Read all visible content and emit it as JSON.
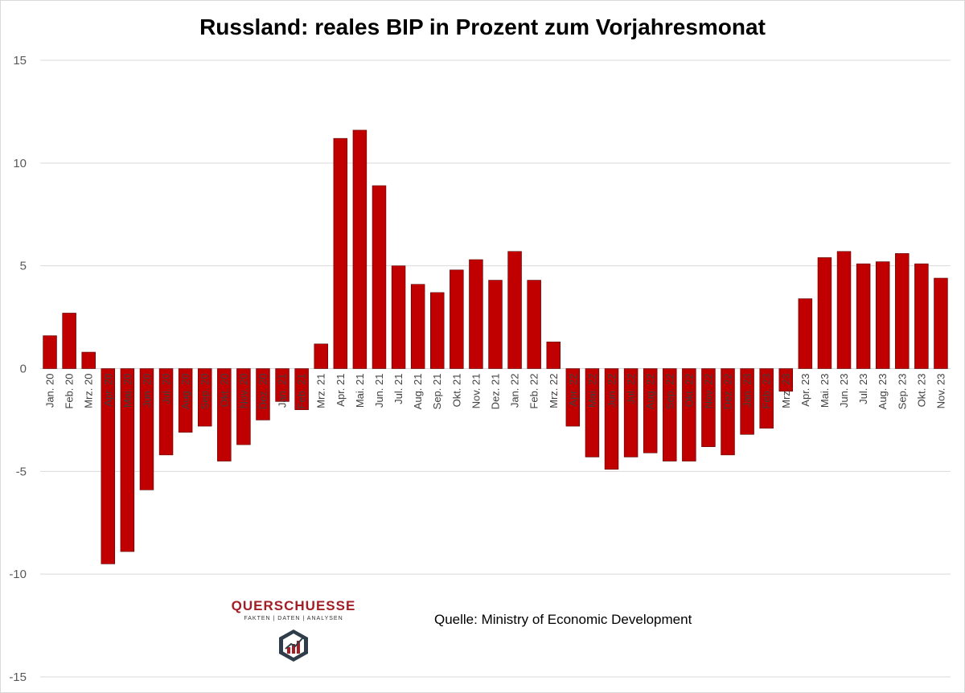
{
  "chart_data": {
    "type": "bar",
    "title": "Russland: reales BIP in Prozent zum Vorjahresmonat",
    "xlabel": "",
    "ylabel": "",
    "ylim": [
      -15,
      15
    ],
    "yticks": [
      15,
      10,
      5,
      0,
      -5,
      -10,
      -15
    ],
    "grid": true,
    "categories": [
      "Jan. 20",
      "Feb. 20",
      "Mrz. 20",
      "Apr. 20",
      "Mai. 20",
      "Jun. 20",
      "Jul. 20",
      "Aug. 20",
      "Sep. 20",
      "Okt. 20",
      "Nov. 20",
      "Dez. 20",
      "Jan. 21",
      "Feb. 21",
      "Mrz. 21",
      "Apr. 21",
      "Mai. 21",
      "Jun. 21",
      "Jul. 21",
      "Aug. 21",
      "Sep. 21",
      "Okt. 21",
      "Nov. 21",
      "Dez. 21",
      "Jan. 22",
      "Feb. 22",
      "Mrz. 22",
      "Apr. 22",
      "Mai. 22",
      "Jun. 22",
      "Jul. 22",
      "Aug. 22",
      "Sep. 22",
      "Okt. 22",
      "Nov. 22",
      "Dez. 22",
      "Jan. 23",
      "Feb. 23",
      "Mrz. 23",
      "Apr. 23",
      "Mai. 23",
      "Jun. 23",
      "Jul. 23",
      "Aug. 23",
      "Sep. 23",
      "Okt. 23",
      "Nov. 23"
    ],
    "values": [
      1.6,
      2.7,
      0.8,
      -9.5,
      -8.9,
      -5.9,
      -4.2,
      -3.1,
      -2.8,
      -4.5,
      -3.7,
      -2.5,
      -1.6,
      -2.0,
      1.2,
      11.2,
      11.6,
      8.9,
      5.0,
      4.1,
      3.7,
      4.8,
      5.3,
      4.3,
      5.7,
      4.3,
      1.3,
      -2.8,
      -4.3,
      -4.9,
      -4.3,
      -4.1,
      -4.5,
      -4.5,
      -3.8,
      -4.2,
      -3.2,
      -2.9,
      -1.1,
      3.4,
      5.4,
      5.7,
      5.1,
      5.2,
      5.6,
      5.1,
      4.4
    ],
    "bar_color": "#c00000"
  },
  "source_text": "Quelle: Ministry of Economic Development",
  "logo": {
    "name": "QUERSCHUESSE",
    "tagline": "FAKTEN | DATEN | ANALYSEN",
    "color": "#a31d24"
  }
}
